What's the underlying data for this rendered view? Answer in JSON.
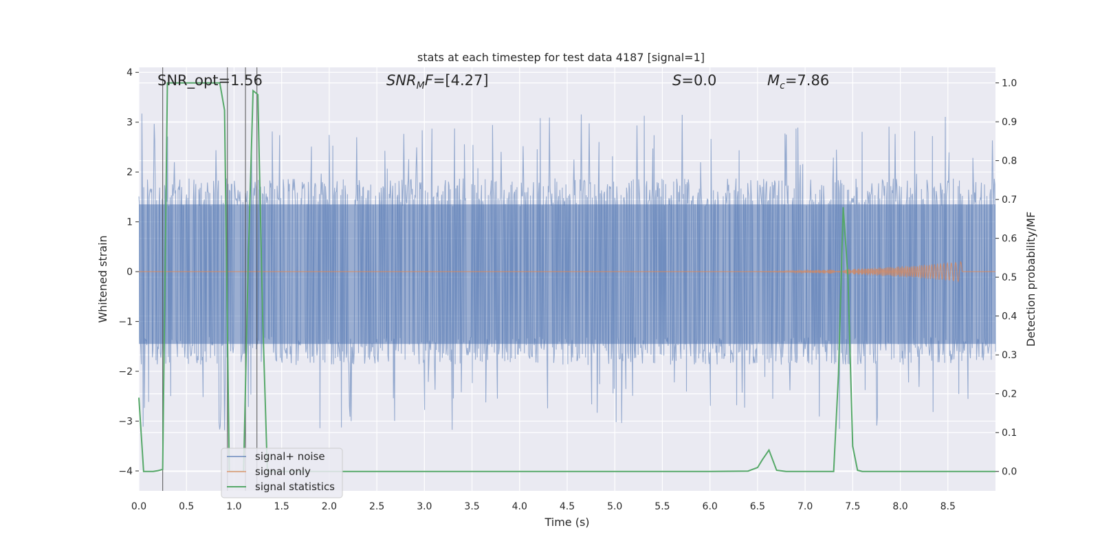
{
  "chart_data": {
    "type": "line",
    "title": "stats at each timestep for test data 4187 [signal=1]",
    "xlabel": "Time (s)",
    "ylabel": "Whitened strain",
    "y2label": "Detection probability/MF",
    "xlim": [
      0,
      9.0
    ],
    "ylim": [
      -4.4,
      4.1
    ],
    "y2lim": [
      -0.05,
      1.04
    ],
    "grid": true,
    "xticks": [
      "0.0",
      "0.5",
      "1.0",
      "1.5",
      "2.0",
      "2.5",
      "3.0",
      "3.5",
      "4.0",
      "4.5",
      "5.0",
      "5.5",
      "6.0",
      "6.5",
      "7.0",
      "7.5",
      "8.0",
      "8.5"
    ],
    "yticks": [
      "4",
      "3",
      "2",
      "1",
      "0",
      "−1",
      "−2",
      "−3",
      "−4"
    ],
    "y2ticks": [
      "1.0",
      "0.9",
      "0.8",
      "0.7",
      "0.6",
      "0.5",
      "0.4",
      "0.3",
      "0.2",
      "0.1",
      "0.0"
    ],
    "annotations": {
      "snr_opt": "SNR_opt=1.56",
      "snr_mf_sym": "SNR",
      "snr_mf_sub": "M",
      "snr_mf_f": "F",
      "snr_mf_val": "=[4.27]",
      "s_sym": "S",
      "s_val": "=0.0",
      "mc_sym": "M",
      "mc_sub": "c",
      "mc_val": "=7.86"
    },
    "legend": {
      "location": "lower-left",
      "entries": [
        "signal+ noise",
        "signal only",
        "signal statistics"
      ]
    },
    "series": [
      {
        "name": "signal+ noise",
        "kind": "noise",
        "color": "#4c72b0",
        "typical_range": [
          -1.7,
          1.6
        ],
        "max_peak": 3.7,
        "min_peak": -4.0
      },
      {
        "name": "signal only",
        "kind": "chirp",
        "color": "#dd8452",
        "chirp_start": 6.0,
        "chirp_end": 8.65,
        "max_amplitude": 0.2
      },
      {
        "name": "signal statistics",
        "kind": "line",
        "axis": "right",
        "color": "#55a868",
        "x": [
          0.0,
          0.05,
          0.1,
          0.15,
          0.2,
          0.25,
          0.3,
          0.35,
          0.4,
          0.5,
          0.6,
          0.7,
          0.8,
          0.85,
          0.9,
          0.95,
          1.0,
          1.05,
          1.1,
          1.15,
          1.2,
          1.25,
          1.3,
          1.35,
          1.4,
          1.5,
          2.0,
          3.0,
          4.0,
          5.0,
          6.0,
          6.4,
          6.5,
          6.55,
          6.62,
          6.7,
          6.8,
          7.0,
          7.3,
          7.35,
          7.4,
          7.45,
          7.5,
          7.55,
          7.6,
          8.0,
          9.0
        ],
        "values": [
          0.19,
          0.0,
          0.0,
          0.0,
          0.002,
          0.005,
          1.0,
          1.0,
          1.0,
          1.0,
          1.0,
          1.0,
          1.0,
          1.0,
          0.93,
          0.0,
          0.0,
          0.0,
          0.0,
          0.55,
          0.98,
          0.97,
          0.4,
          0.0,
          0.0,
          0.0,
          0.0,
          0.0,
          0.0,
          0.0,
          0.0,
          0.001,
          0.01,
          0.03,
          0.055,
          0.003,
          0.0,
          0.0,
          0.0,
          0.25,
          0.68,
          0.5,
          0.065,
          0.003,
          0.0,
          0.0,
          0.0
        ]
      }
    ]
  }
}
